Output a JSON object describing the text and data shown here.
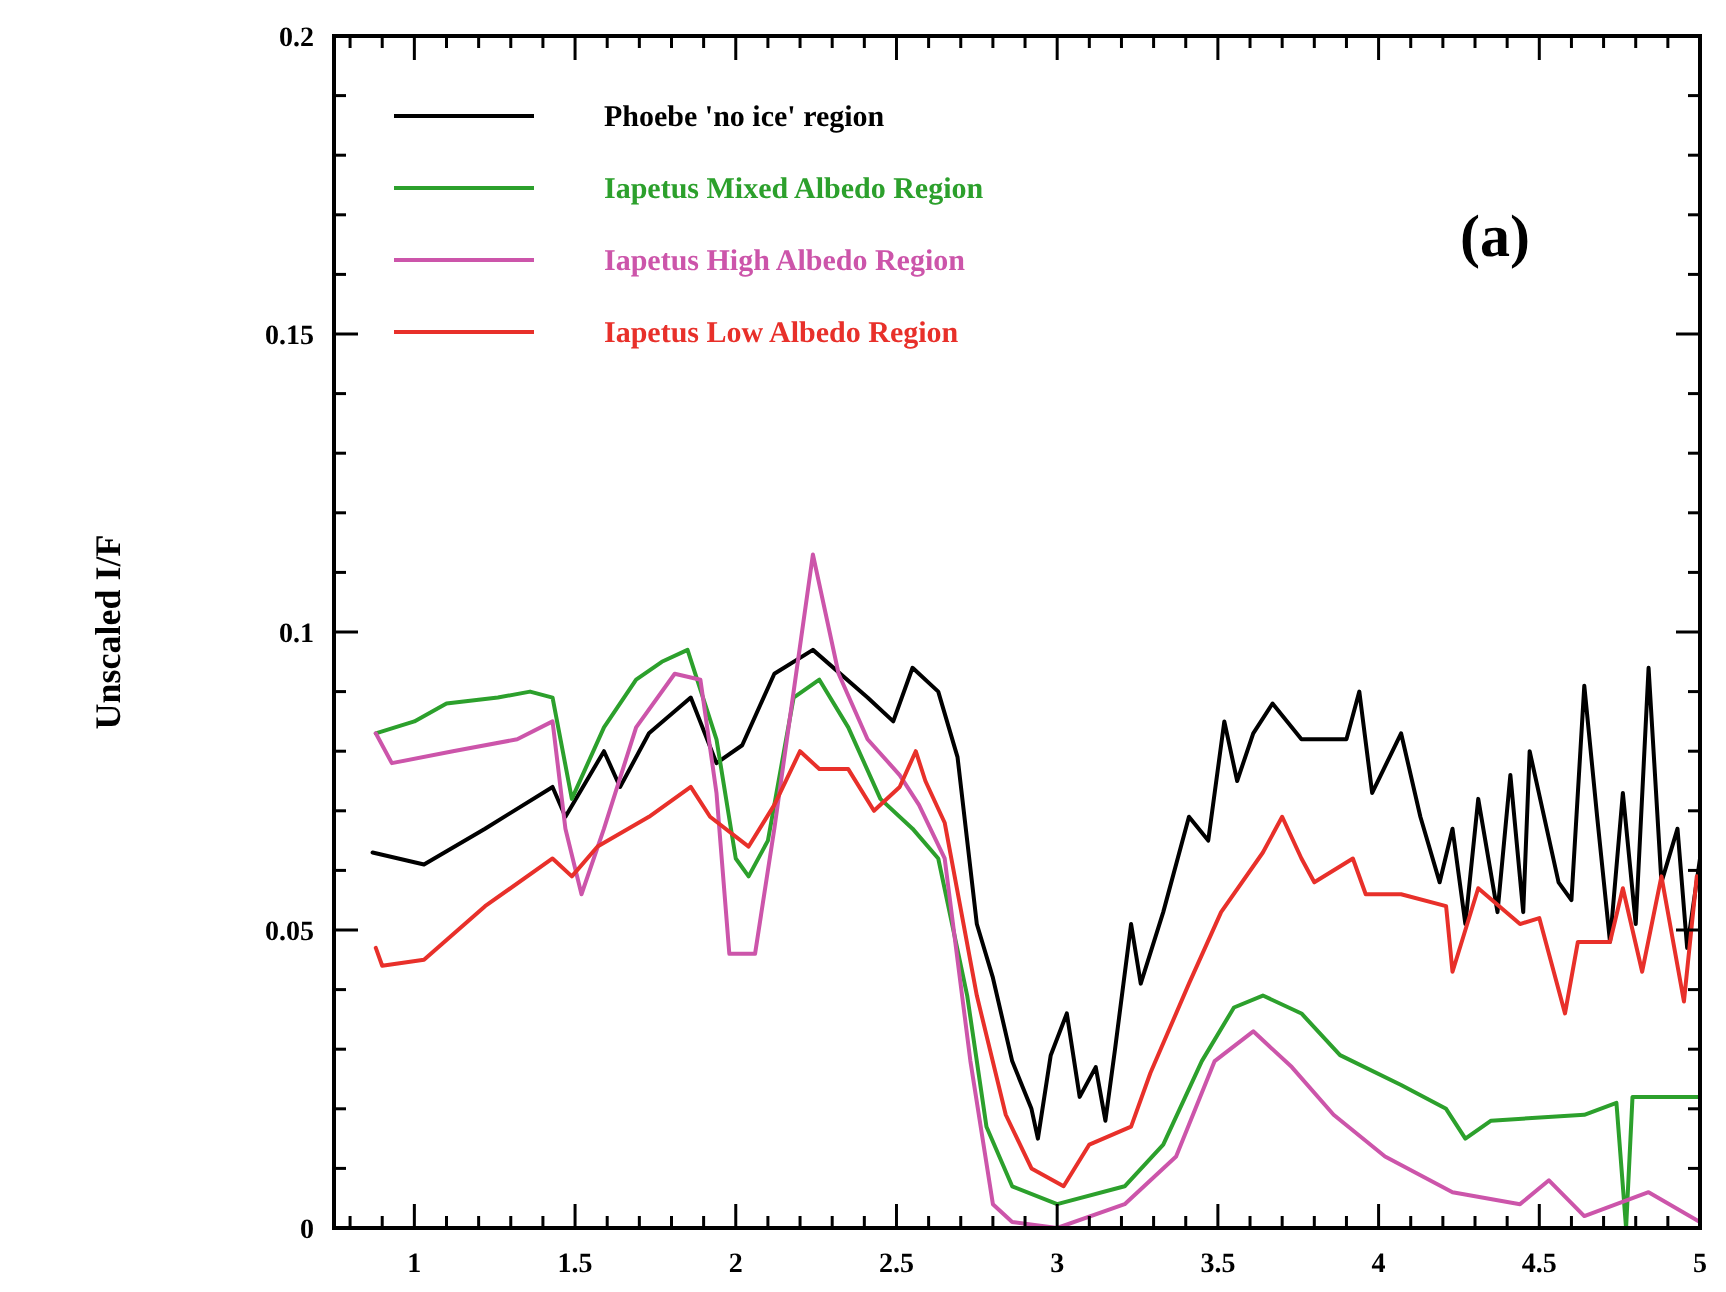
{
  "chart_data": {
    "type": "line",
    "ylabel": "Unscaled I/F",
    "annotations": [
      "(a)"
    ],
    "legend": "top left",
    "line_style": "solid",
    "xlim": [
      0.75,
      5
    ],
    "ylim": [
      0,
      0.2
    ],
    "xticks": [
      {
        "value": 0.8,
        "label": null
      },
      {
        "value": 0.9,
        "label": null
      },
      1,
      {
        "value": 1.1,
        "label": null
      },
      {
        "value": 1.2,
        "label": null
      },
      {
        "value": 1.3,
        "label": null
      },
      {
        "value": 1.4,
        "label": null
      },
      1.5,
      {
        "value": 1.6,
        "label": null
      },
      {
        "value": 1.7,
        "label": null
      },
      {
        "value": 1.8,
        "label": null
      },
      {
        "value": 1.9,
        "label": null
      },
      2,
      {
        "value": 2.1,
        "label": null
      },
      {
        "value": 2.2,
        "label": null
      },
      {
        "value": 2.3,
        "label": null
      },
      {
        "value": 2.4,
        "label": null
      },
      2.5,
      {
        "value": 2.6,
        "label": null
      },
      {
        "value": 2.7,
        "label": null
      },
      {
        "value": 2.8,
        "label": null
      },
      {
        "value": 2.9,
        "label": null
      },
      3,
      {
        "value": 3.1,
        "label": null
      },
      {
        "value": 3.2,
        "label": null
      },
      {
        "value": 3.3,
        "label": null
      },
      {
        "value": 3.4,
        "label": null
      },
      3.5,
      {
        "value": 3.6,
        "label": null
      },
      {
        "value": 3.7,
        "label": null
      },
      {
        "value": 3.8,
        "label": null
      },
      {
        "value": 3.9,
        "label": null
      },
      4,
      {
        "value": 4.1,
        "label": null
      },
      {
        "value": 4.2,
        "label": null
      },
      {
        "value": 4.3,
        "label": null
      },
      {
        "value": 4.4,
        "label": null
      },
      4.5,
      {
        "value": 4.6,
        "label": null
      },
      {
        "value": 4.7,
        "label": null
      },
      {
        "value": 4.8,
        "label": null
      },
      {
        "value": 4.9,
        "label": null
      },
      5
    ],
    "yticks": [
      0,
      {
        "value": 0.01,
        "label": null
      },
      {
        "value": 0.02,
        "label": null
      },
      {
        "value": 0.03,
        "label": null
      },
      {
        "value": 0.04,
        "label": null
      },
      0.05,
      {
        "value": 0.06,
        "label": null
      },
      {
        "value": 0.07,
        "label": null
      },
      {
        "value": 0.08,
        "label": null
      },
      {
        "value": 0.09,
        "label": null
      },
      0.1,
      {
        "value": 0.11,
        "label": null
      },
      {
        "value": 0.12,
        "label": null
      },
      {
        "value": 0.13,
        "label": null
      },
      {
        "value": 0.14,
        "label": null
      },
      0.15,
      {
        "value": 0.16,
        "label": null
      },
      {
        "value": 0.17,
        "label": null
      },
      {
        "value": 0.18,
        "label": null
      },
      {
        "value": 0.19,
        "label": null
      },
      0.2
    ],
    "series": [
      {
        "name": "Phoebe 'no ice' region",
        "color": "#000000",
        "x": [
          0.87,
          0.95,
          1.03,
          1.22,
          1.43,
          1.47,
          1.59,
          1.64,
          1.73,
          1.86,
          1.94,
          2.02,
          2.12,
          2.24,
          2.41,
          2.49,
          2.55,
          2.63,
          2.69,
          2.75,
          2.8,
          2.86,
          2.92,
          2.94,
          2.98,
          3.03,
          3.07,
          3.12,
          3.15,
          3.18,
          3.23,
          3.26,
          3.33,
          3.41,
          3.47,
          3.52,
          3.56,
          3.61,
          3.67,
          3.76,
          3.9,
          3.94,
          3.98,
          4.07,
          4.13,
          4.19,
          4.23,
          4.27,
          4.31,
          4.37,
          4.41,
          4.45,
          4.47,
          4.56,
          4.6,
          4.64,
          4.68,
          4.72,
          4.76,
          4.8,
          4.84,
          4.88,
          4.93,
          4.96,
          5.0
        ],
        "values": [
          0.063,
          0.062,
          0.061,
          0.067,
          0.074,
          0.069,
          0.08,
          0.074,
          0.083,
          0.089,
          0.078,
          0.081,
          0.093,
          0.097,
          0.089,
          0.085,
          0.094,
          0.09,
          0.079,
          0.051,
          0.042,
          0.028,
          0.02,
          0.015,
          0.029,
          0.036,
          0.022,
          0.027,
          0.018,
          0.03,
          0.051,
          0.041,
          0.053,
          0.069,
          0.065,
          0.085,
          0.075,
          0.083,
          0.088,
          0.082,
          0.082,
          0.09,
          0.073,
          0.083,
          0.069,
          0.058,
          0.067,
          0.051,
          0.072,
          0.053,
          0.076,
          0.053,
          0.08,
          0.058,
          0.055,
          0.091,
          0.069,
          0.048,
          0.073,
          0.051,
          0.094,
          0.058,
          0.067,
          0.047,
          0.062
        ]
      },
      {
        "name": "Iapetus Mixed Albedo Region",
        "color": "#2ca02c",
        "x": [
          0.88,
          1.0,
          1.1,
          1.26,
          1.36,
          1.43,
          1.49,
          1.59,
          1.69,
          1.77,
          1.85,
          1.94,
          2.0,
          2.04,
          2.1,
          2.18,
          2.26,
          2.35,
          2.45,
          2.55,
          2.63,
          2.72,
          2.78,
          2.86,
          3.0,
          3.21,
          3.33,
          3.45,
          3.55,
          3.64,
          3.76,
          3.88,
          4.07,
          4.21,
          4.27,
          4.35,
          4.64,
          4.74,
          4.77,
          4.79,
          5.0
        ],
        "values": [
          0.083,
          0.085,
          0.088,
          0.089,
          0.09,
          0.089,
          0.072,
          0.084,
          0.092,
          0.095,
          0.097,
          0.082,
          0.062,
          0.059,
          0.065,
          0.089,
          0.092,
          0.084,
          0.072,
          0.067,
          0.062,
          0.039,
          0.017,
          0.007,
          0.004,
          0.007,
          0.014,
          0.028,
          0.037,
          0.039,
          0.036,
          0.029,
          0.024,
          0.02,
          0.015,
          0.018,
          0.019,
          0.021,
          0.0,
          0.022,
          0.022
        ]
      },
      {
        "name": "Iapetus High Albedo Region",
        "color": "#cc55aa",
        "x": [
          0.88,
          0.93,
          1.12,
          1.32,
          1.43,
          1.47,
          1.52,
          1.59,
          1.69,
          1.81,
          1.89,
          1.94,
          1.98,
          2.06,
          2.12,
          2.18,
          2.24,
          2.32,
          2.41,
          2.51,
          2.57,
          2.65,
          2.73,
          2.8,
          2.86,
          3.0,
          3.21,
          3.37,
          3.49,
          3.61,
          3.73,
          3.86,
          4.02,
          4.23,
          4.44,
          4.53,
          4.64,
          4.84,
          5.0
        ],
        "values": [
          0.083,
          0.078,
          0.08,
          0.082,
          0.085,
          0.067,
          0.056,
          0.067,
          0.084,
          0.093,
          0.092,
          0.073,
          0.046,
          0.046,
          0.067,
          0.09,
          0.113,
          0.093,
          0.082,
          0.076,
          0.071,
          0.062,
          0.028,
          0.004,
          0.001,
          0.0,
          0.004,
          0.012,
          0.028,
          0.033,
          0.027,
          0.019,
          0.012,
          0.006,
          0.004,
          0.008,
          0.002,
          0.006,
          0.001
        ]
      },
      {
        "name": "Iapetus Low Albedo Region",
        "color": "#e8302a",
        "x": [
          0.88,
          0.9,
          1.03,
          1.22,
          1.43,
          1.49,
          1.57,
          1.73,
          1.86,
          1.92,
          2.04,
          2.12,
          2.2,
          2.26,
          2.35,
          2.43,
          2.51,
          2.56,
          2.59,
          2.65,
          2.75,
          2.84,
          2.92,
          3.02,
          3.1,
          3.23,
          3.29,
          3.41,
          3.51,
          3.64,
          3.7,
          3.76,
          3.8,
          3.92,
          3.96,
          4.07,
          4.21,
          4.23,
          4.31,
          4.44,
          4.5,
          4.58,
          4.62,
          4.72,
          4.76,
          4.82,
          4.88,
          4.95,
          4.99
        ],
        "values": [
          0.047,
          0.044,
          0.045,
          0.054,
          0.062,
          0.059,
          0.064,
          0.069,
          0.074,
          0.069,
          0.064,
          0.071,
          0.08,
          0.077,
          0.077,
          0.07,
          0.074,
          0.08,
          0.075,
          0.068,
          0.039,
          0.019,
          0.01,
          0.007,
          0.014,
          0.017,
          0.026,
          0.041,
          0.053,
          0.063,
          0.069,
          0.062,
          0.058,
          0.062,
          0.056,
          0.056,
          0.054,
          0.043,
          0.057,
          0.051,
          0.052,
          0.036,
          0.048,
          0.048,
          0.057,
          0.043,
          0.059,
          0.038,
          0.059
        ]
      }
    ]
  }
}
